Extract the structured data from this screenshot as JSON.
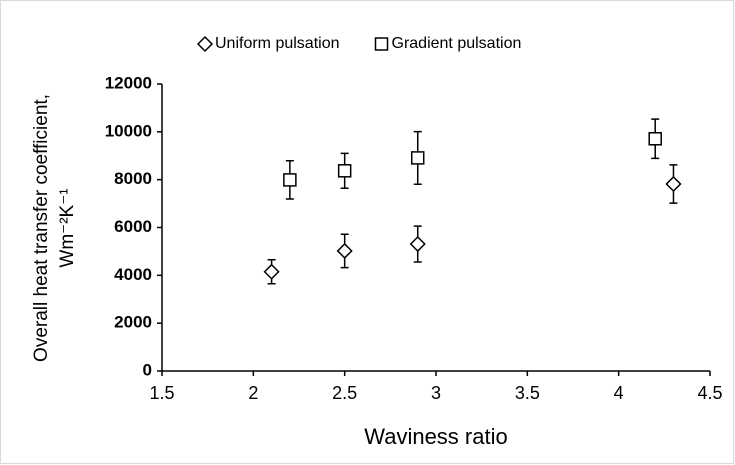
{
  "chart_data": {
    "type": "scatter",
    "x_label": "Waviness ratio",
    "y_label": [
      "Overall heat transfer coefficient,",
      "Wm⁻²K⁻¹"
    ],
    "series": [
      {
        "name": "Uniform pulsation",
        "marker": "diamond",
        "color": "#000000",
        "x": [
          2.1,
          2.5,
          2.9,
          4.3
        ],
        "values": [
          4150,
          5020,
          5310,
          7820
        ],
        "errors": [
          500,
          700,
          750,
          800
        ]
      },
      {
        "name": "Gradient pulsation",
        "marker": "square",
        "color": "#000000",
        "x": [
          2.2,
          2.5,
          2.9,
          4.2
        ],
        "values": [
          7990,
          8370,
          8910,
          9710
        ],
        "errors": [
          800,
          730,
          1100,
          820
        ]
      }
    ],
    "xlim": [
      1.5,
      4.5
    ],
    "xticks": [
      1.5,
      2,
      2.5,
      3,
      3.5,
      4,
      4.5
    ],
    "ylim": [
      0,
      12000
    ],
    "yticks": [
      0,
      2000,
      4000,
      6000,
      8000,
      10000,
      12000
    ],
    "grid": false,
    "legend": "top"
  }
}
